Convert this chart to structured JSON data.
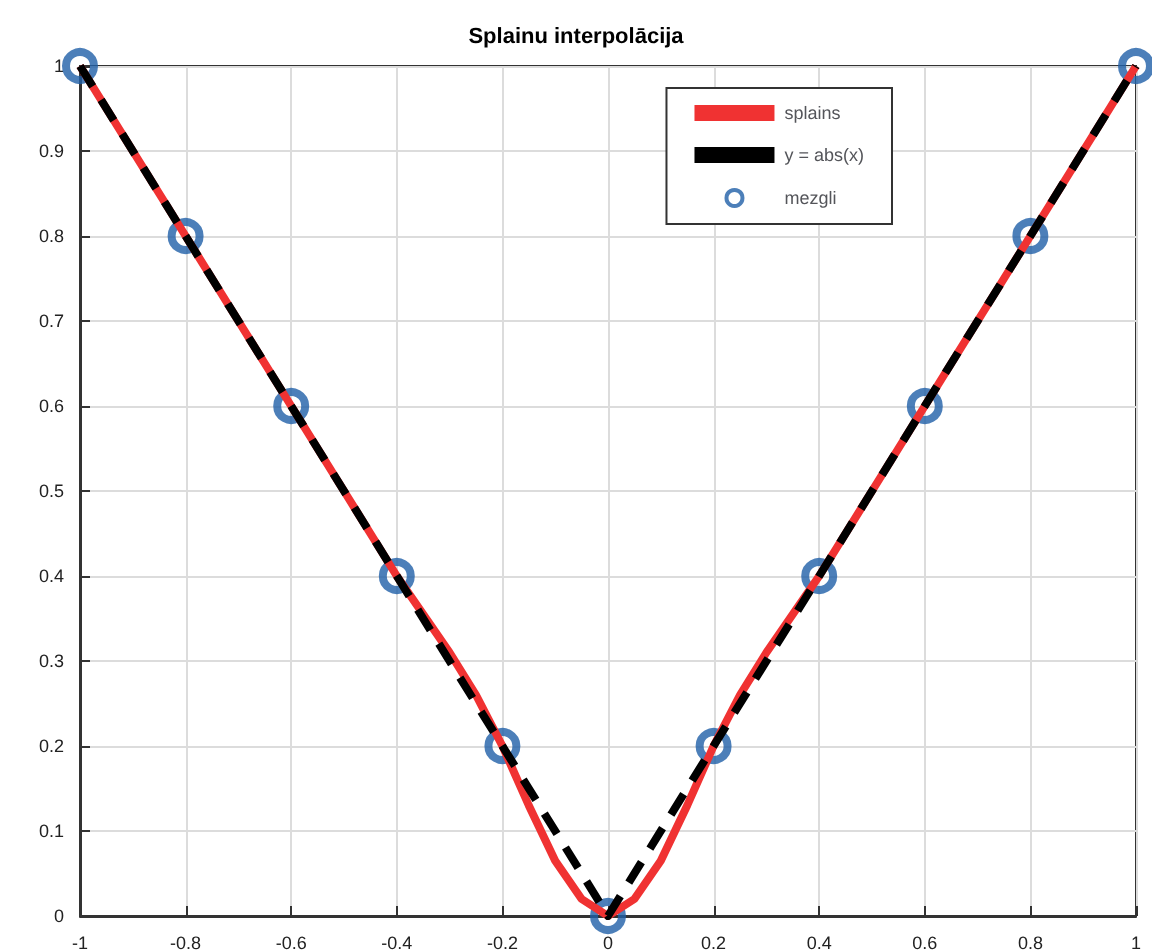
{
  "chart_data": {
    "type": "line",
    "title": "Splainu interpolācija",
    "xlim": [
      -1,
      1
    ],
    "ylim": [
      0,
      1
    ],
    "xticks": [
      -1,
      -0.8,
      -0.6,
      -0.4,
      -0.2,
      0,
      0.2,
      0.4,
      0.6,
      0.8,
      1
    ],
    "yticks": [
      0,
      0.1,
      0.2,
      0.3,
      0.4,
      0.5,
      0.6,
      0.7,
      0.8,
      0.9,
      1
    ],
    "grid": true,
    "legend": "top right",
    "series": [
      {
        "name": "splains",
        "color": "#f03232",
        "line_style": "solid",
        "marker": "none",
        "x": [
          -1,
          -0.95,
          -0.9,
          -0.85,
          -0.8,
          -0.75,
          -0.7,
          -0.65,
          -0.6,
          -0.55,
          -0.5,
          -0.45,
          -0.4,
          -0.35,
          -0.3,
          -0.25,
          -0.2,
          -0.15,
          -0.1,
          -0.05,
          0,
          0.05,
          0.1,
          0.15,
          0.2,
          0.25,
          0.3,
          0.35,
          0.4,
          0.45,
          0.5,
          0.55,
          0.6,
          0.65,
          0.7,
          0.75,
          0.8,
          0.85,
          0.9,
          0.95,
          1
        ],
        "values": [
          1,
          0.95,
          0.9,
          0.85,
          0.8,
          0.75,
          0.7,
          0.65,
          0.6,
          0.55,
          0.5,
          0.45,
          0.4,
          0.355,
          0.31,
          0.26,
          0.2,
          0.13,
          0.065,
          0.02,
          0,
          0.02,
          0.065,
          0.13,
          0.2,
          0.26,
          0.31,
          0.355,
          0.4,
          0.45,
          0.5,
          0.55,
          0.6,
          0.65,
          0.7,
          0.75,
          0.8,
          0.85,
          0.9,
          0.95,
          1
        ]
      },
      {
        "name": "y = abs(x)",
        "color": "#000000",
        "line_style": "dashed",
        "marker": "none",
        "x": [
          -1,
          0,
          1
        ],
        "values": [
          1,
          0,
          1
        ]
      },
      {
        "name": "mezgli",
        "type": "scatter",
        "color": "#1f5fa8",
        "marker": "circle",
        "x": [
          -1,
          -0.8,
          -0.6,
          -0.4,
          -0.2,
          0,
          0.2,
          0.4,
          0.6,
          0.8,
          1
        ],
        "values": [
          1,
          0.8,
          0.6,
          0.4,
          0.2,
          0,
          0.2,
          0.4,
          0.6,
          0.8,
          1
        ]
      }
    ]
  }
}
